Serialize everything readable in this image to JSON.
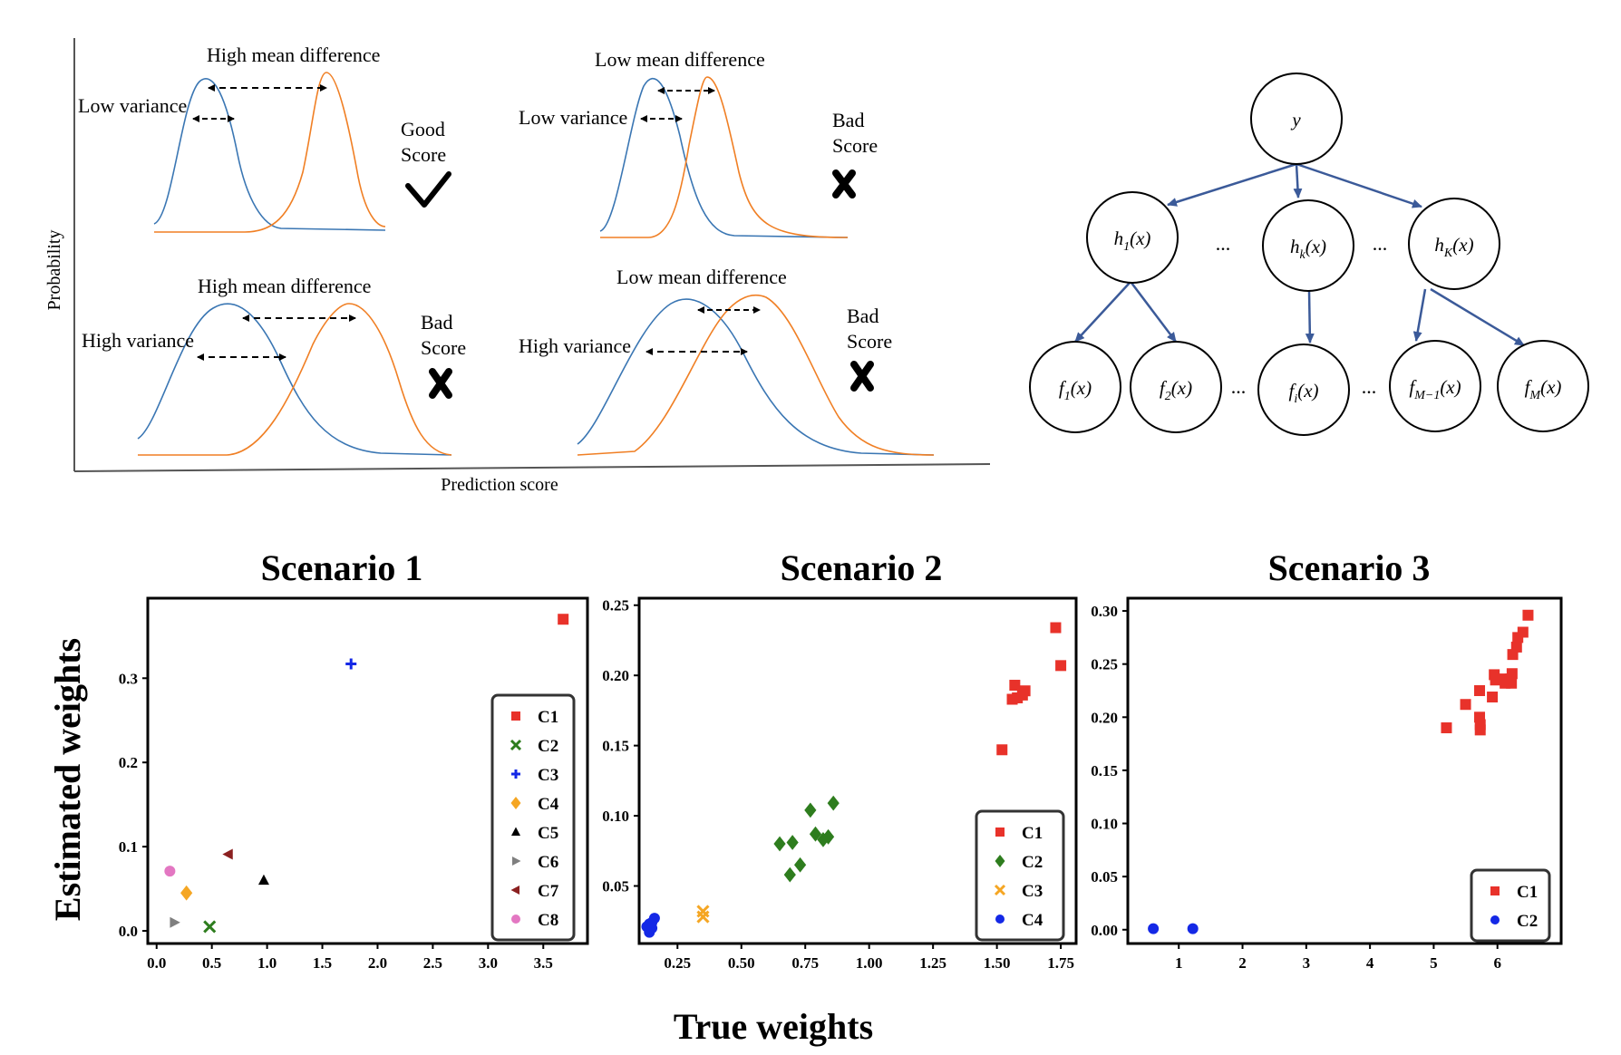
{
  "score_panel": {
    "ylabel": "Probability",
    "xlabel": "Prediction score",
    "panels": [
      {
        "mean_label": "High mean difference",
        "var_label": "Low variance",
        "verdict": [
          "Good",
          "Score"
        ],
        "mark": "check"
      },
      {
        "mean_label": "Low mean difference",
        "var_label": "Low variance",
        "verdict": [
          "Bad",
          "Score"
        ],
        "mark": "cross"
      },
      {
        "mean_label": "High mean difference",
        "var_label": "High variance",
        "verdict": [
          "Bad",
          "Score"
        ],
        "mark": "cross"
      },
      {
        "mean_label": "Low mean difference",
        "var_label": "High variance",
        "verdict": [
          "Bad",
          "Score"
        ],
        "mark": "cross"
      }
    ],
    "colors": {
      "blue": "#3a76b3",
      "orange": "#f07f24"
    }
  },
  "tree": {
    "root": {
      "sym": "y"
    },
    "middle": [
      {
        "sym": "h",
        "sub": "1"
      },
      {
        "sym": "h",
        "sub": "k"
      },
      {
        "sym": "h",
        "sub": "K"
      }
    ],
    "leaves": [
      {
        "sym": "f",
        "sub": "1"
      },
      {
        "sym": "f",
        "sub": "2"
      },
      {
        "sym": "f",
        "sub": "i"
      },
      {
        "sym": "f",
        "sub": "M−1"
      },
      {
        "sym": "f",
        "sub": "M"
      }
    ],
    "arg": "(x)",
    "ellipsis": "...",
    "edge_color": "#3b5a99"
  },
  "common": {
    "ylabel": "Estimated weights",
    "xlabel": "True weights"
  },
  "chart_data": [
    {
      "type": "scatter",
      "title": "Scenario 1",
      "xlim": [
        -0.08,
        3.9
      ],
      "ylim": [
        -0.015,
        0.395
      ],
      "xticks": [
        0.0,
        0.5,
        1.0,
        1.5,
        2.0,
        2.5,
        3.0,
        3.5
      ],
      "xtick_labels": [
        "0.0",
        "0.5",
        "1.0",
        "1.5",
        "2.0",
        "2.5",
        "3.0",
        "3.5"
      ],
      "yticks": [
        0.0,
        0.1,
        0.2,
        0.3
      ],
      "ytick_labels": [
        "0.0",
        "0.1",
        "0.2",
        "0.3"
      ],
      "legend_position": "bottom-right",
      "series": [
        {
          "name": "C1",
          "color": "#e8322a",
          "marker": "square",
          "points": [
            [
              3.68,
              0.37
            ]
          ]
        },
        {
          "name": "C2",
          "color": "#2e7d1e",
          "marker": "x",
          "points": [
            [
              0.48,
              0.005
            ]
          ]
        },
        {
          "name": "C3",
          "color": "#1428e6",
          "marker": "plus",
          "points": [
            [
              1.76,
              0.317
            ]
          ]
        },
        {
          "name": "C4",
          "color": "#f5a623",
          "marker": "diamond",
          "points": [
            [
              0.27,
              0.045
            ]
          ]
        },
        {
          "name": "C5",
          "color": "#000000",
          "marker": "triangle-up",
          "points": [
            [
              0.97,
              0.06
            ]
          ]
        },
        {
          "name": "C6",
          "color": "#7f7f7f",
          "marker": "triangle-right",
          "points": [
            [
              0.16,
              0.01
            ]
          ]
        },
        {
          "name": "C7",
          "color": "#8b2020",
          "marker": "triangle-left",
          "points": [
            [
              0.65,
              0.091
            ]
          ]
        },
        {
          "name": "C8",
          "color": "#e377c2",
          "marker": "circle",
          "points": [
            [
              0.12,
              0.071
            ]
          ]
        }
      ]
    },
    {
      "type": "scatter",
      "title": "Scenario 2",
      "xlim": [
        0.1,
        1.81
      ],
      "ylim": [
        0.009,
        0.255
      ],
      "xticks": [
        0.25,
        0.5,
        0.75,
        1.0,
        1.25,
        1.5,
        1.75
      ],
      "xtick_labels": [
        "0.25",
        "0.50",
        "0.75",
        "1.00",
        "1.25",
        "1.50",
        "1.75"
      ],
      "yticks": [
        0.05,
        0.1,
        0.15,
        0.2,
        0.25
      ],
      "ytick_labels": [
        "0.05",
        "0.10",
        "0.15",
        "0.20",
        "0.25"
      ],
      "legend_position": "bottom-right",
      "series": [
        {
          "name": "C1",
          "color": "#e8322a",
          "marker": "square",
          "points": [
            [
              1.52,
              0.147
            ],
            [
              1.56,
              0.183
            ],
            [
              1.57,
              0.193
            ],
            [
              1.58,
              0.184
            ],
            [
              1.6,
              0.186
            ],
            [
              1.61,
              0.189
            ],
            [
              1.73,
              0.234
            ],
            [
              1.75,
              0.207
            ]
          ]
        },
        {
          "name": "C2",
          "color": "#2e7d1e",
          "marker": "diamond",
          "points": [
            [
              0.65,
              0.08
            ],
            [
              0.69,
              0.058
            ],
            [
              0.7,
              0.081
            ],
            [
              0.73,
              0.065
            ],
            [
              0.77,
              0.104
            ],
            [
              0.79,
              0.087
            ],
            [
              0.82,
              0.083
            ],
            [
              0.84,
              0.085
            ],
            [
              0.86,
              0.109
            ]
          ]
        },
        {
          "name": "C3",
          "color": "#f5a623",
          "marker": "x",
          "points": [
            [
              0.35,
              0.032
            ],
            [
              0.35,
              0.028
            ]
          ]
        },
        {
          "name": "C4",
          "color": "#1428e6",
          "marker": "circle",
          "points": [
            [
              0.13,
              0.021
            ],
            [
              0.14,
              0.017
            ],
            [
              0.14,
              0.023
            ],
            [
              0.15,
              0.02
            ],
            [
              0.15,
              0.024
            ],
            [
              0.16,
              0.027
            ]
          ]
        }
      ]
    },
    {
      "type": "scatter",
      "title": "Scenario 3",
      "xlim": [
        0.2,
        7.0
      ],
      "ylim": [
        -0.013,
        0.312
      ],
      "xticks": [
        1,
        2,
        3,
        4,
        5,
        6
      ],
      "xtick_labels": [
        "1",
        "2",
        "3",
        "4",
        "5",
        "6"
      ],
      "yticks": [
        0.0,
        0.05,
        0.1,
        0.15,
        0.2,
        0.25,
        0.3
      ],
      "ytick_labels": [
        "0.00",
        "0.05",
        "0.10",
        "0.15",
        "0.20",
        "0.25",
        "0.30"
      ],
      "legend_position": "bottom-right",
      "series": [
        {
          "name": "C1",
          "color": "#e8322a",
          "marker": "square",
          "points": [
            [
              5.2,
              0.19
            ],
            [
              5.5,
              0.212
            ],
            [
              5.72,
              0.225
            ],
            [
              5.72,
              0.2
            ],
            [
              5.73,
              0.193
            ],
            [
              5.73,
              0.188
            ],
            [
              5.92,
              0.219
            ],
            [
              5.95,
              0.24
            ],
            [
              5.97,
              0.235
            ],
            [
              6.1,
              0.236
            ],
            [
              6.12,
              0.232
            ],
            [
              6.2,
              0.236
            ],
            [
              6.22,
              0.232
            ],
            [
              6.23,
              0.241
            ],
            [
              6.24,
              0.259
            ],
            [
              6.3,
              0.266
            ],
            [
              6.32,
              0.275
            ],
            [
              6.4,
              0.28
            ],
            [
              6.48,
              0.296
            ]
          ]
        },
        {
          "name": "C2",
          "color": "#1428e6",
          "marker": "circle",
          "points": [
            [
              0.6,
              0.001
            ],
            [
              1.22,
              0.001
            ]
          ]
        }
      ]
    }
  ]
}
